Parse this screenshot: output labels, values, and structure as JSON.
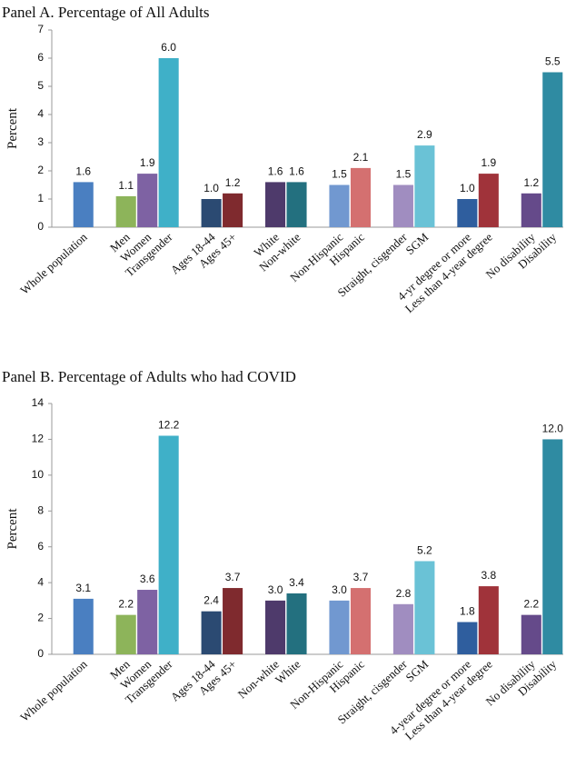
{
  "chart_data": [
    {
      "type": "bar",
      "title": "Panel A. Percentage of All Adults",
      "y_label": "Percent",
      "categories": [
        "Whole population",
        null,
        "Men",
        "Women",
        "Transgender",
        null,
        "Ages 18-44",
        "Ages 45+",
        null,
        "White",
        "Non-white",
        null,
        "Non-Hispanic",
        "Hispanic",
        null,
        "Straight, cisgender",
        "SGM",
        null,
        "4-yr degree or more",
        "Less than 4-year degree",
        null,
        "No disability",
        "Disability"
      ],
      "values": [
        1.6,
        null,
        1.1,
        1.9,
        6.0,
        null,
        1.0,
        1.2,
        null,
        1.6,
        1.6,
        null,
        1.5,
        2.1,
        null,
        1.5,
        2.9,
        null,
        1.0,
        1.9,
        null,
        1.2,
        5.5
      ],
      "value_labels": [
        "1.6",
        null,
        "1.1",
        "1.9",
        "6.0",
        null,
        "1.0",
        "1.2",
        null,
        "1.6",
        "1.6",
        null,
        "1.5",
        "2.1",
        null,
        "1.5",
        "2.9",
        null,
        "1.0",
        "1.9",
        null,
        "1.2",
        "5.5"
      ],
      "colors": [
        "#4a7fc1",
        null,
        "#8db45a",
        "#7e62a3",
        "#3fb0c8",
        null,
        "#2b4a72",
        "#7f2a2e",
        null,
        "#4e3a6b",
        "#23707f",
        null,
        "#7198d0",
        "#d47070",
        null,
        "#a08dc0",
        "#6ac2d6",
        null,
        "#2f5e9e",
        "#a0333a",
        null,
        "#654a8a",
        "#2f8ba2"
      ],
      "ylim": [
        0,
        7
      ],
      "yticks": [
        0,
        1,
        2,
        3,
        4,
        5,
        6,
        7
      ]
    },
    {
      "type": "bar",
      "title": "Panel B. Percentage of Adults who had COVID",
      "y_label": "Percent",
      "categories": [
        "Whole population",
        null,
        "Men",
        "Women",
        "Transgender",
        null,
        "Ages 18-44",
        "Ages 45+",
        null,
        "Non-white",
        "White",
        null,
        "Non-Hispanic",
        "Hispanic",
        null,
        "Straight, cisgender",
        "SGM",
        null,
        "4-year degree or more",
        "Less than 4-year degree",
        null,
        "No disability",
        "Disability"
      ],
      "values": [
        3.1,
        null,
        2.2,
        3.6,
        12.2,
        null,
        2.4,
        3.7,
        null,
        3.0,
        3.4,
        null,
        3.0,
        3.7,
        null,
        2.8,
        5.2,
        null,
        1.8,
        3.8,
        null,
        2.2,
        12.0
      ],
      "value_labels": [
        "3.1",
        null,
        "2.2",
        "3.6",
        "12.2",
        null,
        "2.4",
        "3.7",
        null,
        "3.0",
        "3.4",
        null,
        "3.0",
        "3.7",
        null,
        "2.8",
        "5.2",
        null,
        "1.8",
        "3.8",
        null,
        "2.2",
        "12.0"
      ],
      "colors": [
        "#4a7fc1",
        null,
        "#8db45a",
        "#7e62a3",
        "#3fb0c8",
        null,
        "#2b4a72",
        "#7f2a2e",
        null,
        "#4e3a6b",
        "#23707f",
        null,
        "#7198d0",
        "#d47070",
        null,
        "#a08dc0",
        "#6ac2d6",
        null,
        "#2f5e9e",
        "#a0333a",
        null,
        "#654a8a",
        "#2f8ba2"
      ],
      "ylim": [
        0,
        14
      ],
      "yticks": [
        0,
        2,
        4,
        6,
        8,
        10,
        12,
        14
      ]
    }
  ]
}
